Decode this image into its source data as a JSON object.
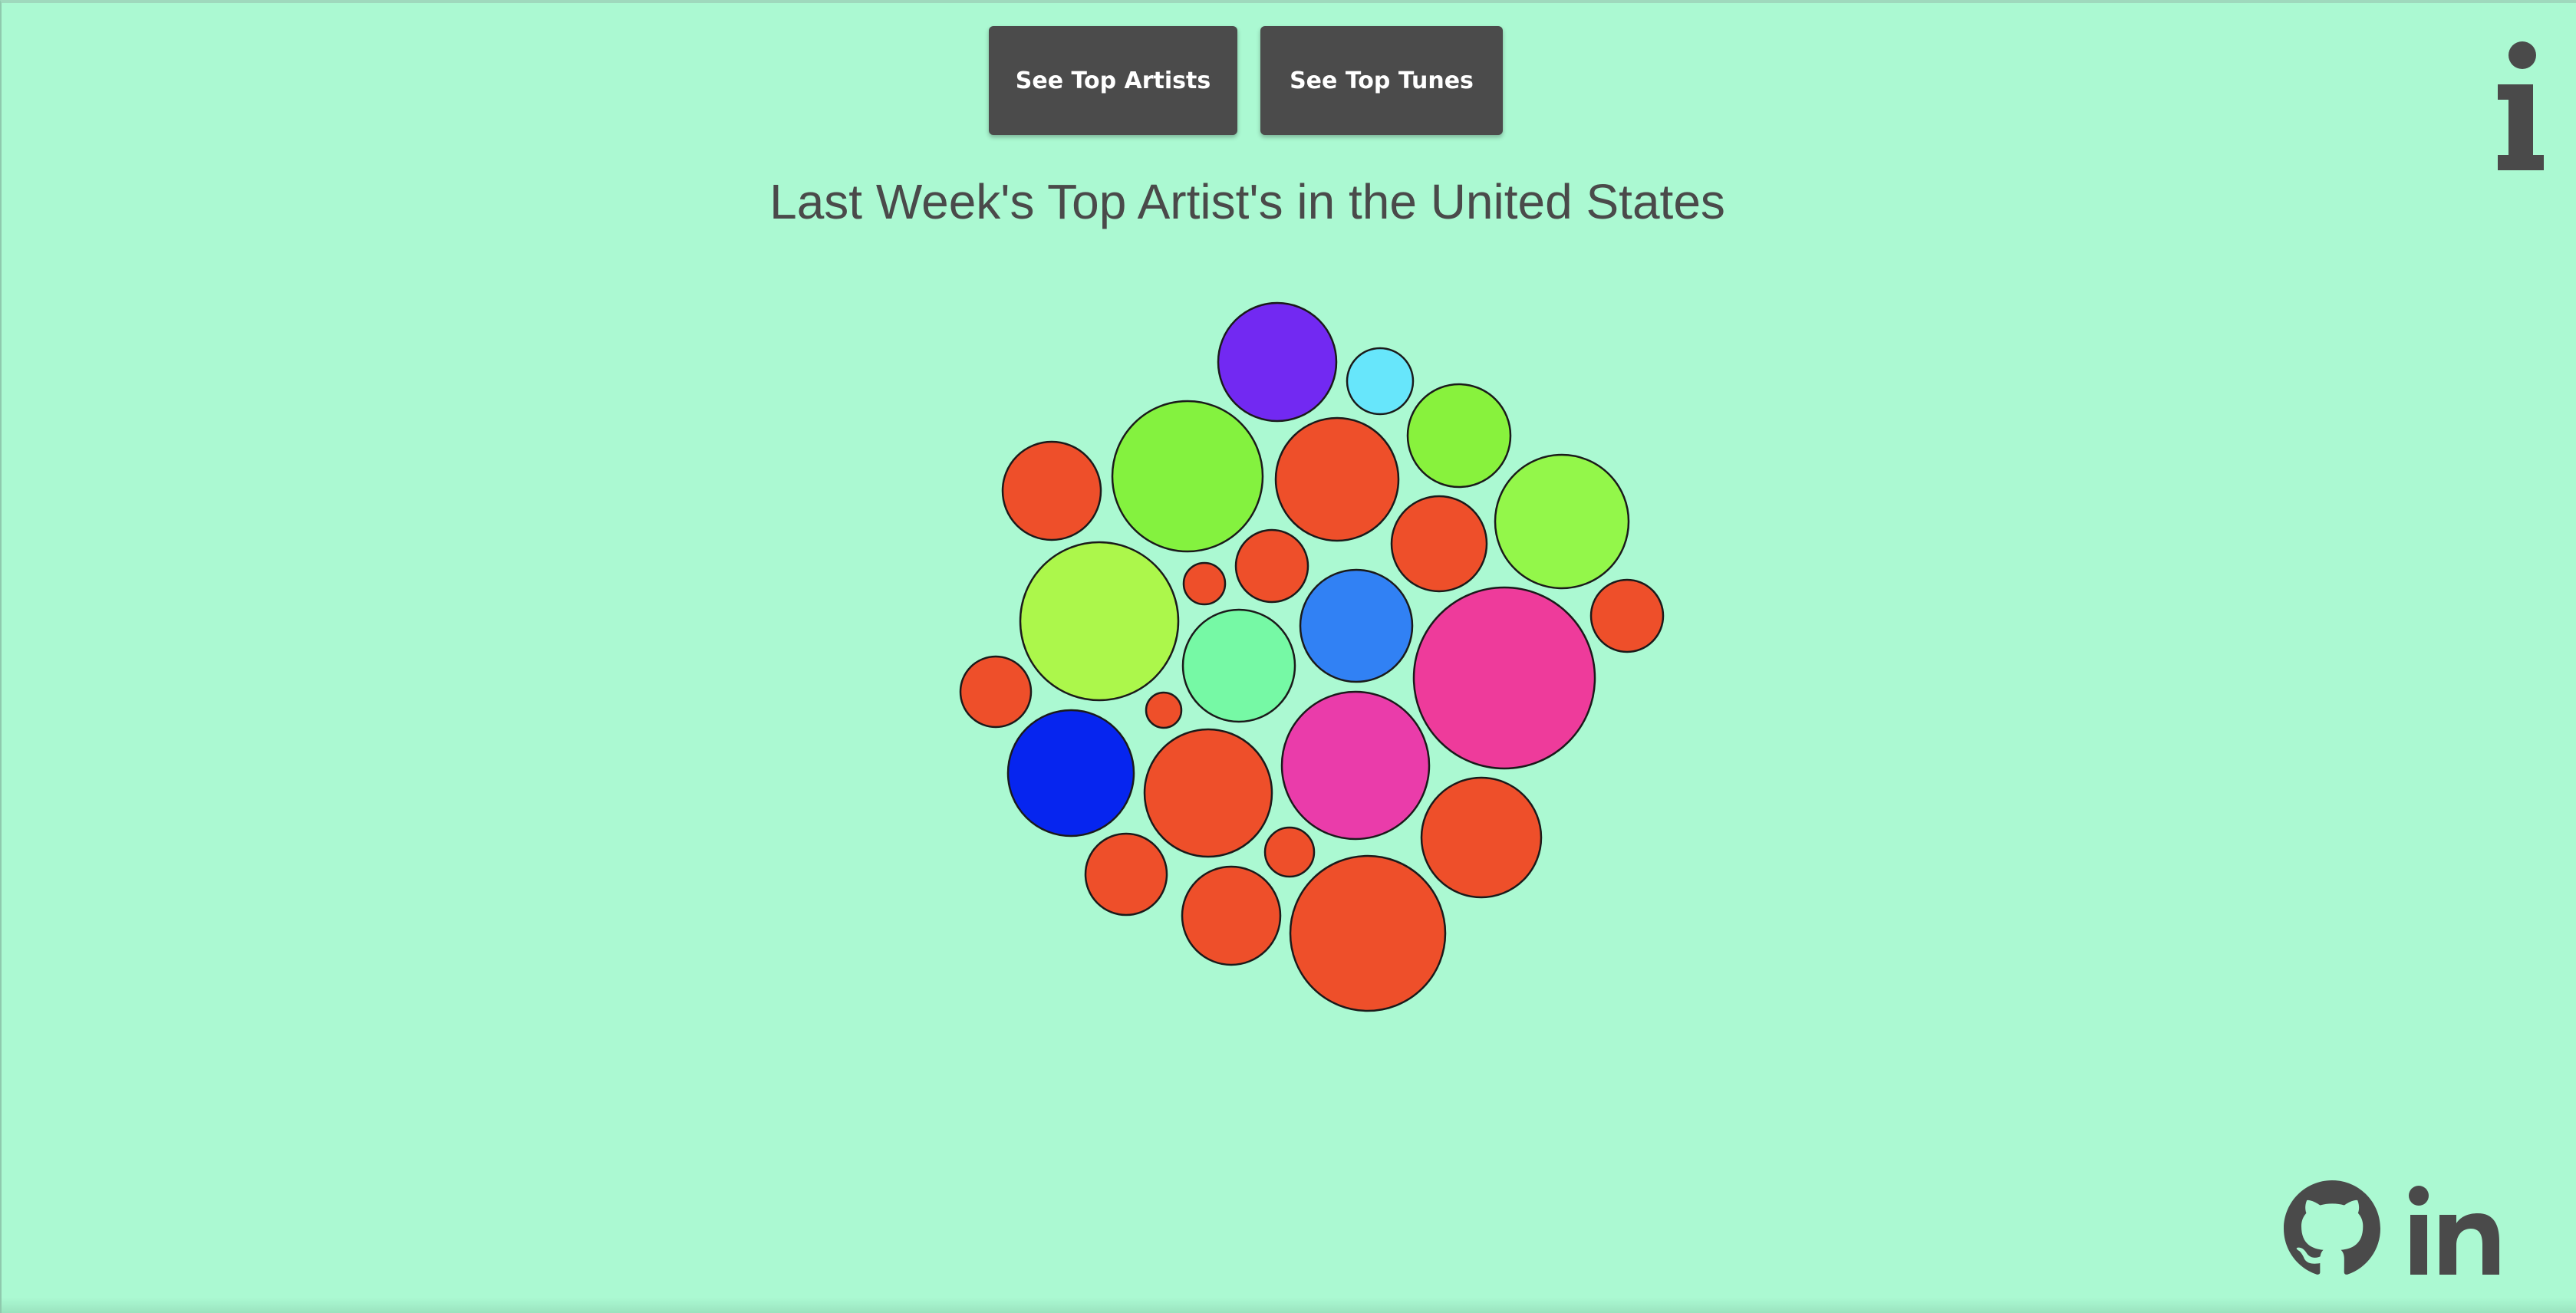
{
  "header": {
    "buttons": [
      {
        "label": "See Top Artists"
      },
      {
        "label": "See Top Tunes"
      }
    ],
    "title": "Last Week's Top Artist's in the United States"
  },
  "icons": {
    "info": "info-icon",
    "github": "github-icon",
    "linkedin": "linkedin-icon"
  },
  "colors": {
    "background": "#abf9d2",
    "button": "#4b4b4b",
    "icon": "#4a4a4a",
    "title": "#4a4a4a"
  },
  "bubbles": [
    {
      "color": "#7229f2"
    },
    {
      "color": "#67e6fb"
    },
    {
      "color": "#88f23d"
    },
    {
      "color": "#ee4f2a"
    },
    {
      "color": "#84f23f"
    },
    {
      "color": "#ee4f2a"
    },
    {
      "color": "#93f74a"
    },
    {
      "color": "#ee4f2a"
    },
    {
      "color": "#ee4f2a"
    },
    {
      "color": "#ee4f2a"
    },
    {
      "color": "#acf74b"
    },
    {
      "color": "#3181f4"
    },
    {
      "color": "#ee3b9b"
    },
    {
      "color": "#76f9a5"
    },
    {
      "color": "#ee4f2a"
    },
    {
      "color": "#ee4f2a"
    },
    {
      "color": "#ee4f2a"
    },
    {
      "color": "#0625ef"
    },
    {
      "color": "#ee4f2a"
    },
    {
      "color": "#ea3caa"
    },
    {
      "color": "#ee4f2a"
    },
    {
      "color": "#ee4f2a"
    },
    {
      "color": "#ee4f2a"
    },
    {
      "color": "#ee4f2a"
    },
    {
      "color": "#ee4f2a"
    }
  ]
}
